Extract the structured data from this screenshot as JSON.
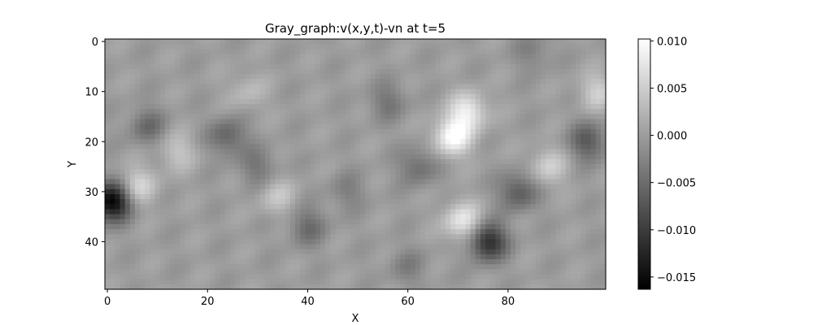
{
  "chart_data": {
    "type": "heatmap",
    "title": "Gray_graph:v(x,y,t)-vn at t=5",
    "xlabel": "X",
    "ylabel": "Y",
    "colormap": "gray",
    "grid": false,
    "x_range": [
      0,
      99
    ],
    "y_range": [
      0,
      49
    ],
    "y_inverted": true,
    "x_ticks": [
      0,
      20,
      40,
      60,
      80
    ],
    "y_ticks": [
      0,
      10,
      20,
      30,
      40
    ],
    "x_tick_labels": [
      "0",
      "20",
      "40",
      "60",
      "80"
    ],
    "y_tick_labels": [
      "0",
      "10",
      "20",
      "30",
      "40"
    ],
    "colorbar": {
      "min": -0.0163,
      "max": 0.0102,
      "ticks": [
        0.01,
        0.005,
        0.0,
        -0.005,
        -0.01,
        -0.015
      ],
      "tick_labels": [
        "0.010",
        "0.005",
        "0.000",
        "−0.005",
        "−0.010",
        "−0.015"
      ],
      "colors": [
        "#000000",
        "#ffffff"
      ]
    },
    "grid_size": {
      "nx": 100,
      "ny": 50
    },
    "features": [
      {
        "x": 1,
        "y": 32,
        "value": -0.0163
      },
      {
        "x": 6,
        "y": 29,
        "value": 0.006
      },
      {
        "x": 8,
        "y": 17,
        "value": -0.005
      },
      {
        "x": 14,
        "y": 22,
        "value": 0.004
      },
      {
        "x": 24,
        "y": 19,
        "value": -0.006
      },
      {
        "x": 28,
        "y": 10,
        "value": 0.003
      },
      {
        "x": 30,
        "y": 25,
        "value": -0.004
      },
      {
        "x": 34,
        "y": 31,
        "value": 0.004
      },
      {
        "x": 40,
        "y": 37,
        "value": -0.005
      },
      {
        "x": 48,
        "y": 30,
        "value": -0.003
      },
      {
        "x": 56,
        "y": 12,
        "value": -0.004
      },
      {
        "x": 62,
        "y": 25,
        "value": -0.005
      },
      {
        "x": 69,
        "y": 19,
        "value": 0.0102
      },
      {
        "x": 72,
        "y": 14,
        "value": 0.008
      },
      {
        "x": 71,
        "y": 36,
        "value": 0.008
      },
      {
        "x": 76,
        "y": 40,
        "value": -0.012
      },
      {
        "x": 82,
        "y": 30,
        "value": -0.007
      },
      {
        "x": 88,
        "y": 25,
        "value": 0.005
      },
      {
        "x": 96,
        "y": 20,
        "value": -0.007
      },
      {
        "x": 98,
        "y": 10,
        "value": 0.005
      },
      {
        "x": 60,
        "y": 45,
        "value": -0.003
      },
      {
        "x": 85,
        "y": 2,
        "value": -0.003
      }
    ]
  }
}
